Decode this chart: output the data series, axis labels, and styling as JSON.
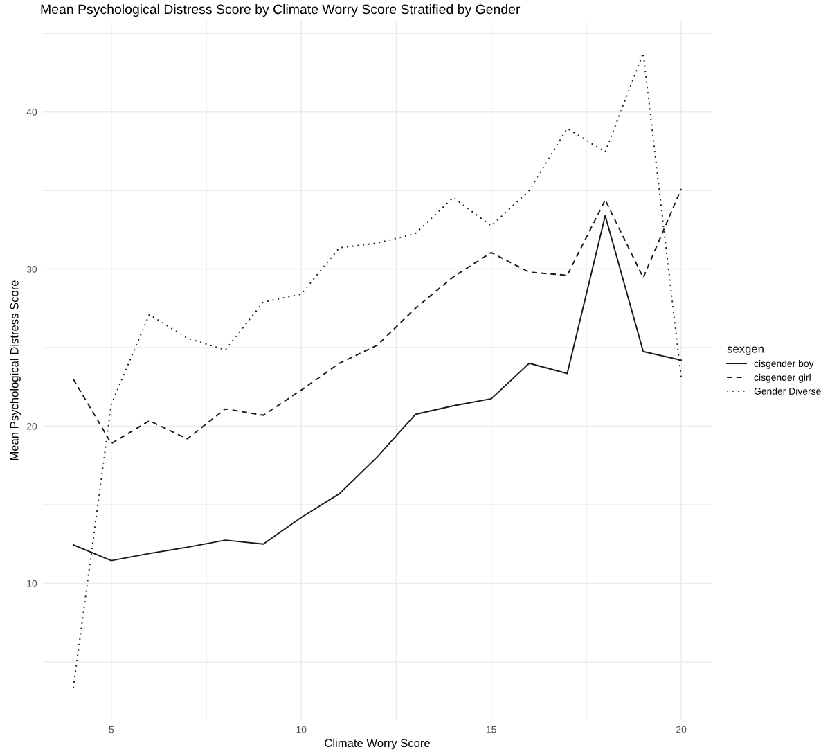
{
  "chart_data": {
    "type": "line",
    "title": "Mean Psychological Distress Score by Climate Worry Score Stratified by Gender",
    "xlabel": "Climate Worry Score",
    "ylabel": "Mean Psychological Distress Score",
    "legend_title": "sexgen",
    "x": [
      4,
      5,
      6,
      7,
      8,
      9,
      10,
      11,
      12,
      13,
      14,
      15,
      16,
      17,
      18,
      19,
      20
    ],
    "series": [
      {
        "name": "cisgender boy",
        "color": "#1a1a1a",
        "line_style": "solid",
        "values": [
          12.45,
          11.45,
          11.9,
          12.3,
          12.75,
          12.5,
          14.2,
          15.7,
          18.05,
          20.75,
          21.3,
          21.75,
          24.0,
          23.35,
          33.4,
          24.75,
          24.2
        ]
      },
      {
        "name": "cisgender girl",
        "color": "#1a1a1a",
        "line_style": "dashed",
        "values": [
          23.0,
          18.9,
          20.35,
          19.2,
          21.1,
          20.7,
          22.3,
          24.0,
          25.15,
          27.5,
          29.5,
          31.05,
          29.8,
          29.6,
          34.4,
          29.45,
          35.1
        ]
      },
      {
        "name": "Gender Diverse",
        "color": "#1a1a1a",
        "line_style": "dotted",
        "values": [
          3.35,
          21.4,
          27.1,
          25.6,
          24.85,
          27.9,
          28.4,
          31.35,
          31.65,
          32.25,
          34.55,
          32.75,
          35.0,
          38.95,
          37.45,
          43.75,
          23.1
        ]
      }
    ],
    "xlim": [
      3.2,
      20.8
    ],
    "ylim": [
      1.3,
      45.8
    ],
    "xticks": [
      5,
      {
        "value": 7.5,
        "label": null
      },
      10,
      {
        "value": 12.5,
        "label": null
      },
      15,
      {
        "value": 17.5,
        "label": null
      },
      20
    ],
    "yticks": [
      {
        "value": 5,
        "label": null
      },
      10,
      {
        "value": 15,
        "label": null
      },
      20,
      {
        "value": 25,
        "label": null
      },
      30,
      {
        "value": 35,
        "label": null
      },
      40,
      {
        "value": 45,
        "label": null
      }
    ],
    "grid": true,
    "legend": "right",
    "marker": "none"
  }
}
